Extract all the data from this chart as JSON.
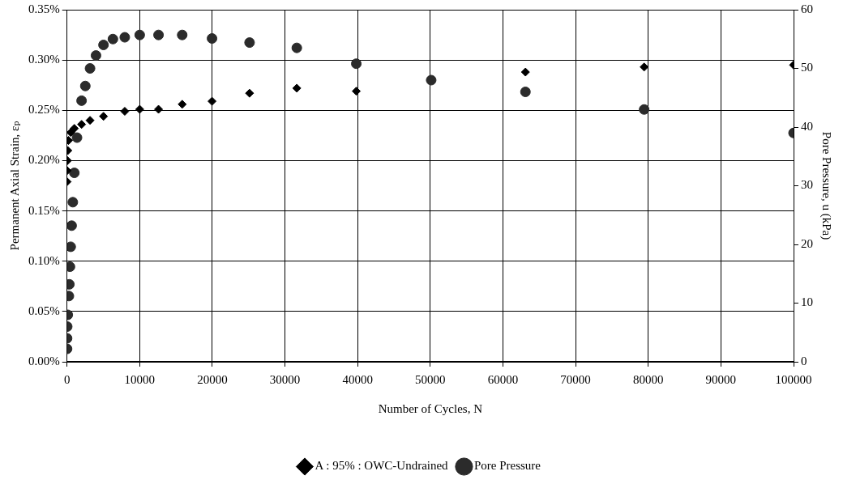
{
  "chart_data": {
    "type": "scatter",
    "xlabel": "Number of Cycles, N",
    "ylabel": "Permanent Axial Strain, εₚ",
    "y2label": "Pore Pressure, u (kPa)",
    "xlim": [
      0,
      100000
    ],
    "xticks": [
      0,
      10000,
      20000,
      30000,
      40000,
      50000,
      60000,
      70000,
      80000,
      90000,
      100000
    ],
    "ylim": [
      0,
      0.35
    ],
    "yticks": [
      {
        "value": 0,
        "label": "0.00%"
      },
      {
        "value": 0.05,
        "label": "0.05%"
      },
      {
        "value": 0.1,
        "label": "0.10%"
      },
      {
        "value": 0.15,
        "label": "0.15%"
      },
      {
        "value": 0.2,
        "label": "0.20%"
      },
      {
        "value": 0.25,
        "label": "0.25%"
      },
      {
        "value": 0.3,
        "label": "0.30%"
      },
      {
        "value": 0.35,
        "label": "0.35%"
      }
    ],
    "y2lim": [
      0,
      60
    ],
    "y2ticks": [
      0,
      10,
      20,
      30,
      40,
      50,
      60
    ],
    "grid": true,
    "legend": "bottom",
    "series": [
      {
        "name": "A : 95% : OWC-Undrained",
        "color": "#000000",
        "marker": "diamond",
        "x": [
          1,
          10,
          50,
          100,
          200,
          501,
          1000,
          1995,
          3162,
          5012,
          7943,
          10000,
          12589,
          15849,
          19953,
          25119,
          31623,
          39811,
          63096,
          79433,
          100000
        ],
        "values": [
          0.179,
          0.19,
          0.2,
          0.21,
          0.22,
          0.228,
          0.232,
          0.236,
          0.24,
          0.244,
          0.249,
          0.251,
          0.251,
          0.256,
          0.259,
          0.267,
          0.272,
          0.269,
          0.288,
          0.293,
          0.295
        ]
      },
      {
        "name": "Pore Pressure",
        "color": "#2b2b2b",
        "marker": "circle",
        "axis": "y2",
        "x": [
          1,
          5,
          20,
          100,
          251,
          316,
          398,
          501,
          631,
          794,
          1000,
          1370,
          1995,
          2512,
          3162,
          3981,
          5012,
          6310,
          7943,
          10000,
          12589,
          15849,
          19953,
          25119,
          31623,
          39811,
          50119,
          63096,
          79433,
          100000
        ],
        "values": [
          2.2,
          4,
          6,
          8,
          11.2,
          13.2,
          16.2,
          19.6,
          23.2,
          27.2,
          32.2,
          38.2,
          44.5,
          47,
          50,
          52.2,
          54,
          55,
          55.3,
          55.7,
          55.7,
          55.7,
          55.1,
          54.4,
          53.5,
          50.8,
          48,
          46,
          43,
          39
        ]
      }
    ]
  }
}
